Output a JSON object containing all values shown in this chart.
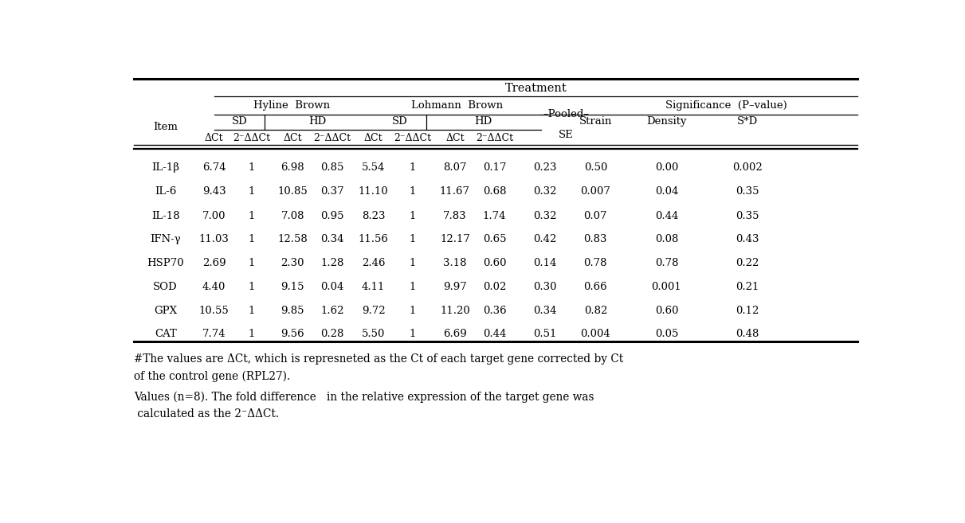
{
  "rows": [
    [
      "IL-1β",
      "6.74",
      "1",
      "6.98",
      "0.85",
      "5.54",
      "1",
      "8.07",
      "0.17",
      "0.23",
      "0.50",
      "0.00",
      "0.002"
    ],
    [
      "IL-6",
      "9.43",
      "1",
      "10.85",
      "0.37",
      "11.10",
      "1",
      "11.67",
      "0.68",
      "0.32",
      "0.007",
      "0.04",
      "0.35"
    ],
    [
      "IL-18",
      "7.00",
      "1",
      "7.08",
      "0.95",
      "8.23",
      "1",
      "7.83",
      "1.74",
      "0.32",
      "0.07",
      "0.44",
      "0.35"
    ],
    [
      "IFN-γ",
      "11.03",
      "1",
      "12.58",
      "0.34",
      "11.56",
      "1",
      "12.17",
      "0.65",
      "0.42",
      "0.83",
      "0.08",
      "0.43"
    ],
    [
      "HSP70",
      "2.69",
      "1",
      "2.30",
      "1.28",
      "2.46",
      "1",
      "3.18",
      "0.60",
      "0.14",
      "0.78",
      "0.78",
      "0.22"
    ],
    [
      "SOD",
      "4.40",
      "1",
      "9.15",
      "0.04",
      "4.11",
      "1",
      "9.97",
      "0.02",
      "0.30",
      "0.66",
      "0.001",
      "0.21"
    ],
    [
      "GPX",
      "10.55",
      "1",
      "9.85",
      "1.62",
      "9.72",
      "1",
      "11.20",
      "0.36",
      "0.34",
      "0.82",
      "0.60",
      "0.12"
    ],
    [
      "CAT",
      "7.74",
      "1",
      "9.56",
      "0.28",
      "5.50",
      "1",
      "6.69",
      "0.44",
      "0.51",
      "0.004",
      "0.05",
      "0.48"
    ]
  ],
  "footnote1": "#The values are ΔCt, which is represneted as the Ct of each target gene corrected by Ct",
  "footnote2": "of the control gene (RPL27).",
  "footnote3": "Values (n=8). The fold difference   in the relative expression of the target gene was",
  "footnote4": " calculated as the 2⁻ΔΔCt.",
  "bg_color": "#ffffff",
  "text_color": "#000000",
  "fs": 10.5,
  "fs_small": 9.5,
  "fs_fn": 9.8
}
